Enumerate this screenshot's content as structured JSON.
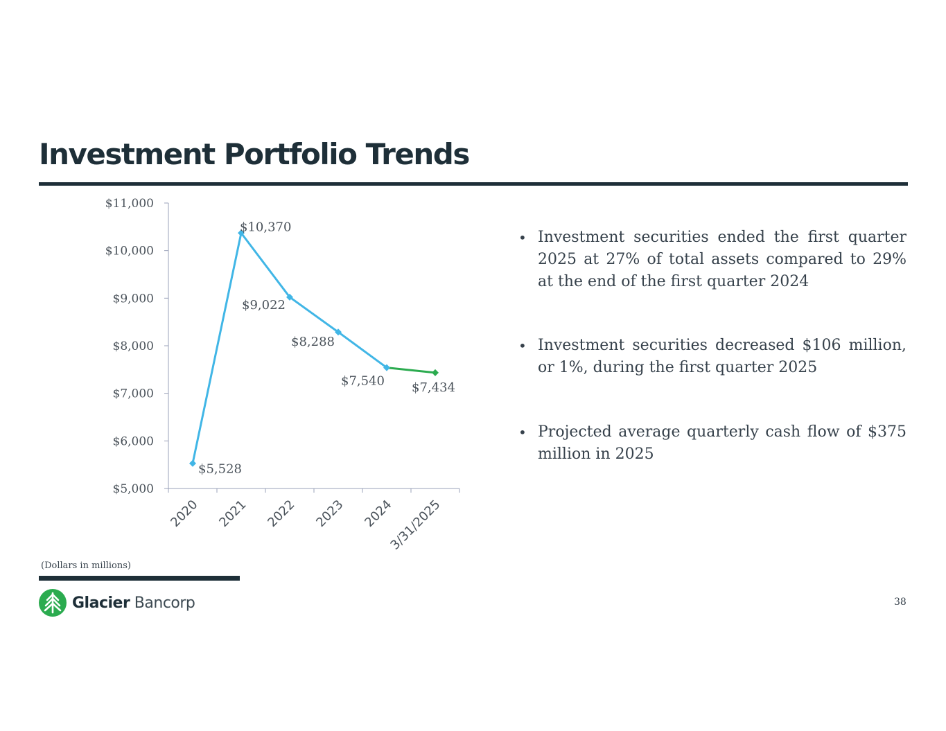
{
  "slide": {
    "title": "Investment Portfolio Trends",
    "footnote": "(Dollars in millions)",
    "page_number": "38",
    "logo": {
      "name_bold": "Glacier",
      "name_light": "Bancorp",
      "icon": "tree-icon",
      "icon_color": "#2bab4f"
    }
  },
  "bullets": [
    "Investment securities ended the first quarter 2025 at 27% of total assets compared to 29% at the end of the first quarter 2024",
    "Investment securities decreased $106 million, or 1%, during the first quarter 2025",
    "Projected average quarterly cash flow of $375 million in 2025"
  ],
  "chart_data": {
    "type": "line",
    "categories": [
      "2020",
      "2021",
      "2022",
      "2023",
      "2024",
      "3/31/2025"
    ],
    "values": [
      5528,
      10370,
      9022,
      8288,
      7540,
      7434
    ],
    "data_labels": [
      "$5,528",
      "$10,370",
      "$9,022",
      "$8,288",
      "$7,540",
      "$7,434"
    ],
    "ylim": [
      5000,
      11000
    ],
    "yticks": [
      5000,
      6000,
      7000,
      8000,
      9000,
      10000,
      11000
    ],
    "ytick_labels": [
      "$5,000",
      "$6,000",
      "$7,000",
      "$8,000",
      "$9,000",
      "$10,000",
      "$11,000"
    ],
    "line_color": "#41b6e6",
    "highlight_color": "#2bab4f",
    "highlight_last_segment": true,
    "grid": false,
    "legend": "none"
  }
}
